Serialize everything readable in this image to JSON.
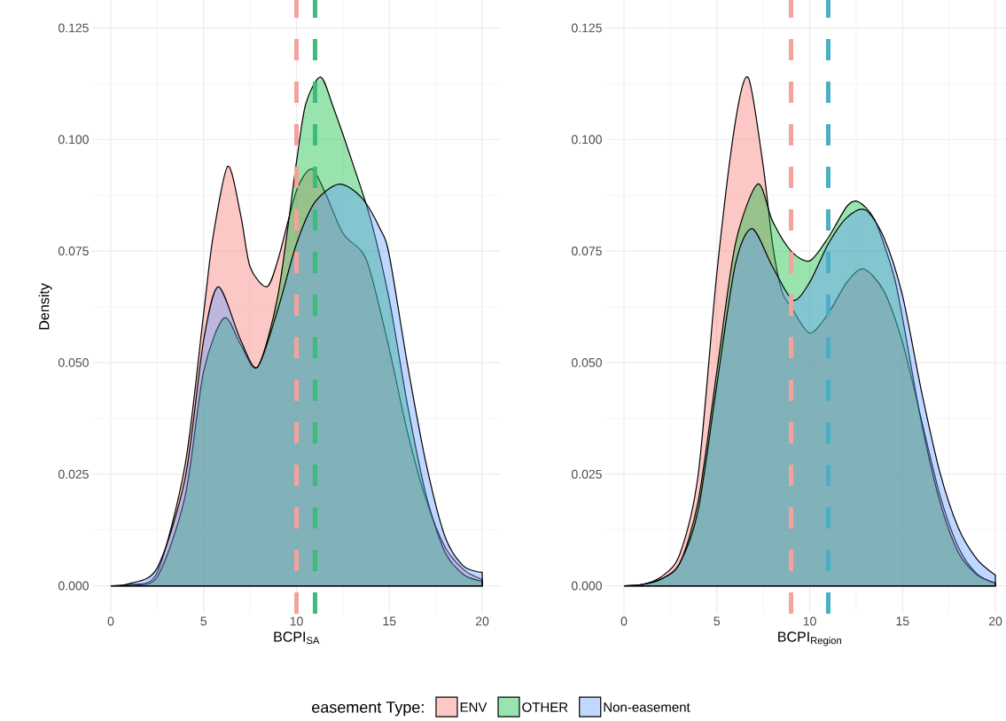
{
  "chart_data": [
    {
      "type": "area",
      "xlabel": "BCPI$_{SA}$",
      "ylabel": "Density",
      "legend_title": "easement Type:",
      "legend": "bottom",
      "grid": true,
      "xlim": [
        -1,
        21
      ],
      "ylim": [
        -0.00625,
        0.13125
      ],
      "xticks": [
        0,
        5,
        10,
        15,
        20
      ],
      "yticks": [
        {
          "value": 0,
          "label": "0.000"
        },
        {
          "value": 0.025,
          "label": "0.025"
        },
        {
          "value": 0.05,
          "label": "0.050"
        },
        {
          "value": 0.075,
          "label": "0.075"
        },
        {
          "value": 0.1,
          "label": "0.100"
        },
        {
          "value": 0.125,
          "label": "0.125"
        }
      ],
      "series": [
        {
          "name": "ENV",
          "color": "#f8766d",
          "x": [
            0,
            1,
            2.5,
            4,
            5,
            5.5,
            6.3,
            7,
            7.5,
            8.4,
            9,
            10,
            10.8,
            11.5,
            12.5,
            13.5,
            14,
            15,
            16,
            17,
            18,
            19,
            20
          ],
          "values": [
            0,
            0.0003,
            0.003,
            0.027,
            0.061,
            0.078,
            0.094,
            0.083,
            0.0715,
            0.067,
            0.073,
            0.0885,
            0.0934,
            0.0885,
            0.079,
            0.075,
            0.07,
            0.053,
            0.034,
            0.019,
            0.0087,
            0.0036,
            0.0014
          ]
        },
        {
          "name": "OTHER",
          "color": "#00ba38",
          "x": [
            0,
            1,
            2.5,
            4,
            5,
            6.1,
            7,
            7.9,
            9,
            10,
            10.5,
            11.3,
            12,
            13,
            14,
            15,
            16,
            17,
            18,
            19,
            20
          ],
          "values": [
            0,
            0.0003,
            0.002,
            0.02,
            0.048,
            0.06,
            0.054,
            0.049,
            0.065,
            0.095,
            0.108,
            0.114,
            0.107,
            0.095,
            0.082,
            0.064,
            0.04,
            0.02,
            0.0075,
            0.0025,
            0.001
          ]
        },
        {
          "name": "Non-easement",
          "color": "#619cff",
          "x": [
            0,
            1,
            2.5,
            4,
            5,
            5.8,
            7,
            7.9,
            9,
            10,
            11,
            12.3,
            13.5,
            14.5,
            15,
            16,
            17,
            18,
            19,
            20
          ],
          "values": [
            0,
            0.0005,
            0.004,
            0.024,
            0.055,
            0.067,
            0.055,
            0.049,
            0.062,
            0.0766,
            0.086,
            0.09,
            0.087,
            0.08,
            0.074,
            0.049,
            0.027,
            0.011,
            0.0044,
            0.003
          ]
        }
      ],
      "ref_lines": [
        {
          "axis": "x",
          "value": 10,
          "color": "#f4a29c",
          "line_style": "dashed"
        },
        {
          "axis": "x",
          "value": 11,
          "color": "#3dbb7a",
          "line_style": "dashed"
        }
      ]
    },
    {
      "type": "area",
      "xlabel": "BCPI$_{Region}$",
      "grid": true,
      "xlim": [
        -1,
        21
      ],
      "ylim": [
        -0.00625,
        0.13125
      ],
      "xticks": [
        0,
        5,
        10,
        15,
        20
      ],
      "yticks": [
        {
          "value": 0,
          "label": "0.000"
        },
        {
          "value": 0.025,
          "label": "0.025"
        },
        {
          "value": 0.05,
          "label": "0.050"
        },
        {
          "value": 0.075,
          "label": "0.075"
        },
        {
          "value": 0.1,
          "label": "0.100"
        },
        {
          "value": 0.125,
          "label": "0.125"
        }
      ],
      "series": [
        {
          "color": "#f8766d",
          "x": [
            0,
            1,
            2,
            3,
            4,
            5,
            6,
            6.7,
            7.5,
            8,
            8.5,
            9,
            10,
            11,
            12,
            12.9,
            14,
            15,
            16,
            17,
            18,
            19,
            20
          ],
          "values": [
            0,
            0.0003,
            0.002,
            0.007,
            0.025,
            0.07,
            0.104,
            0.1138,
            0.094,
            0.0766,
            0.066,
            0.0625,
            0.0566,
            0.061,
            0.068,
            0.071,
            0.066,
            0.0545,
            0.0375,
            0.0205,
            0.0087,
            0.0027,
            0.0006
          ]
        },
        {
          "color": "#00ba38",
          "x": [
            0,
            1,
            2,
            3,
            4,
            5,
            6,
            7.2,
            8,
            9,
            10,
            11,
            12,
            12.6,
            13.5,
            14.5,
            15,
            16,
            17,
            18,
            19,
            20
          ],
          "values": [
            0,
            0.0003,
            0.0015,
            0.005,
            0.019,
            0.048,
            0.0766,
            0.09,
            0.0817,
            0.075,
            0.0728,
            0.078,
            0.085,
            0.0861,
            0.082,
            0.07,
            0.06,
            0.037,
            0.019,
            0.0075,
            0.0025,
            0.0006
          ]
        },
        {
          "color": "#619cff",
          "x": [
            0,
            1,
            2,
            3,
            4,
            5,
            6,
            6.9,
            8,
            9.1,
            10,
            11,
            12,
            13,
            14,
            15,
            16,
            17,
            18,
            19,
            20
          ],
          "values": [
            0,
            0.0003,
            0.0015,
            0.005,
            0.017,
            0.045,
            0.072,
            0.08,
            0.0715,
            0.064,
            0.068,
            0.0766,
            0.0825,
            0.0842,
            0.078,
            0.065,
            0.044,
            0.0256,
            0.013,
            0.006,
            0.0024
          ]
        }
      ],
      "ref_lines": [
        {
          "axis": "x",
          "value": 9,
          "color": "#f4a29c",
          "line_style": "dashed"
        },
        {
          "axis": "x",
          "value": 11,
          "color": "#4aaec4",
          "line_style": "dashed"
        }
      ]
    }
  ]
}
